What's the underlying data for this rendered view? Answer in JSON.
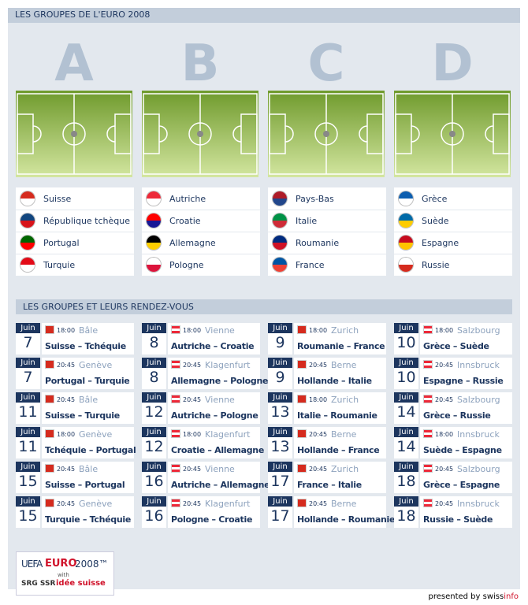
{
  "header": {
    "title": "LES GROUPES DE L'EURO 2008"
  },
  "groups": [
    {
      "letter": "A",
      "teams": [
        "Suisse",
        "République tchèque",
        "Portugal",
        "Turquie"
      ]
    },
    {
      "letter": "B",
      "teams": [
        "Autriche",
        "Croatie",
        "Allemagne",
        "Pologne"
      ]
    },
    {
      "letter": "C",
      "teams": [
        "Pays-Bas",
        "Italie",
        "Roumanie",
        "France"
      ]
    },
    {
      "letter": "D",
      "teams": [
        "Grèce",
        "Suède",
        "Espagne",
        "Russie"
      ]
    }
  ],
  "schedule": {
    "title": "LES GROUPES ET LEURS RENDEZ-VOUS",
    "columns": [
      [
        {
          "month": "Juin",
          "day": "7",
          "time": "18:00",
          "city": "Bâle",
          "match": "Suisse – Tchéquie"
        },
        {
          "month": "Juin",
          "day": "7",
          "time": "20:45",
          "city": "Genève",
          "match": "Portugal – Turquie"
        },
        {
          "month": "Juin",
          "day": "11",
          "time": "20:45",
          "city": "Bâle",
          "match": "Suisse – Turquie"
        },
        {
          "month": "Juin",
          "day": "11",
          "time": "18:00",
          "city": "Genève",
          "match": "Tchéquie – Portugal"
        },
        {
          "month": "Juin",
          "day": "15",
          "time": "20:45",
          "city": "Bâle",
          "match": "Suisse – Portugal"
        },
        {
          "month": "Juin",
          "day": "15",
          "time": "20:45",
          "city": "Genève",
          "match": "Turquie – Tchéquie"
        }
      ],
      [
        {
          "month": "Juin",
          "day": "8",
          "time": "18:00",
          "city": "Vienne",
          "match": "Autriche – Croatie"
        },
        {
          "month": "Juin",
          "day": "8",
          "time": "20:45",
          "city": "Klagenfurt",
          "match": "Allemagne – Pologne"
        },
        {
          "month": "Juin",
          "day": "12",
          "time": "20:45",
          "city": "Vienne",
          "match": "Autriche – Pologne"
        },
        {
          "month": "Juin",
          "day": "12",
          "time": "18:00",
          "city": "Klagenfurt",
          "match": "Croatie – Allemagne"
        },
        {
          "month": "Juin",
          "day": "16",
          "time": "20:45",
          "city": "Vienne",
          "match": "Autriche – Allemagne"
        },
        {
          "month": "Juin",
          "day": "16",
          "time": "20:45",
          "city": "Klagenfurt",
          "match": "Pologne – Croatie"
        }
      ],
      [
        {
          "month": "Juin",
          "day": "9",
          "time": "18:00",
          "city": "Zurich",
          "match": "Roumanie – France"
        },
        {
          "month": "Juin",
          "day": "9",
          "time": "20:45",
          "city": "Berne",
          "match": "Hollande – Italie"
        },
        {
          "month": "Juin",
          "day": "13",
          "time": "18:00",
          "city": "Zurich",
          "match": "Italie – Roumanie"
        },
        {
          "month": "Juin",
          "day": "13",
          "time": "20:45",
          "city": "Berne",
          "match": "Hollande – France"
        },
        {
          "month": "Juin",
          "day": "17",
          "time": "20:45",
          "city": "Zurich",
          "match": "France – Italie"
        },
        {
          "month": "Juin",
          "day": "17",
          "time": "20:45",
          "city": "Berne",
          "match": "Hollande – Roumanie"
        }
      ],
      [
        {
          "month": "Juin",
          "day": "10",
          "time": "18:00",
          "city": "Salzbourg",
          "match": "Grèce – Suède"
        },
        {
          "month": "Juin",
          "day": "10",
          "time": "20:45",
          "city": "Innsbruck",
          "match": "Espagne – Russie"
        },
        {
          "month": "Juin",
          "day": "14",
          "time": "20:45",
          "city": "Salzbourg",
          "match": "Grèce – Russie"
        },
        {
          "month": "Juin",
          "day": "14",
          "time": "18:00",
          "city": "Innsbruck",
          "match": "Suède – Espagne"
        },
        {
          "month": "Juin",
          "day": "18",
          "time": "20:45",
          "city": "Salzbourg",
          "match": "Grèce – Espagne"
        },
        {
          "month": "Juin",
          "day": "18",
          "time": "20:45",
          "city": "Innsbruck",
          "match": "Russie – Suède"
        }
      ]
    ]
  },
  "logo": {
    "uefa": "UEFA",
    "euro": "EURO",
    "year": "2008™",
    "with": "with",
    "srg": "SRG SSR",
    "idee": "idée suisse"
  },
  "footer": {
    "text": "presented by",
    "brand1": "swiss",
    "brand2": "info"
  }
}
